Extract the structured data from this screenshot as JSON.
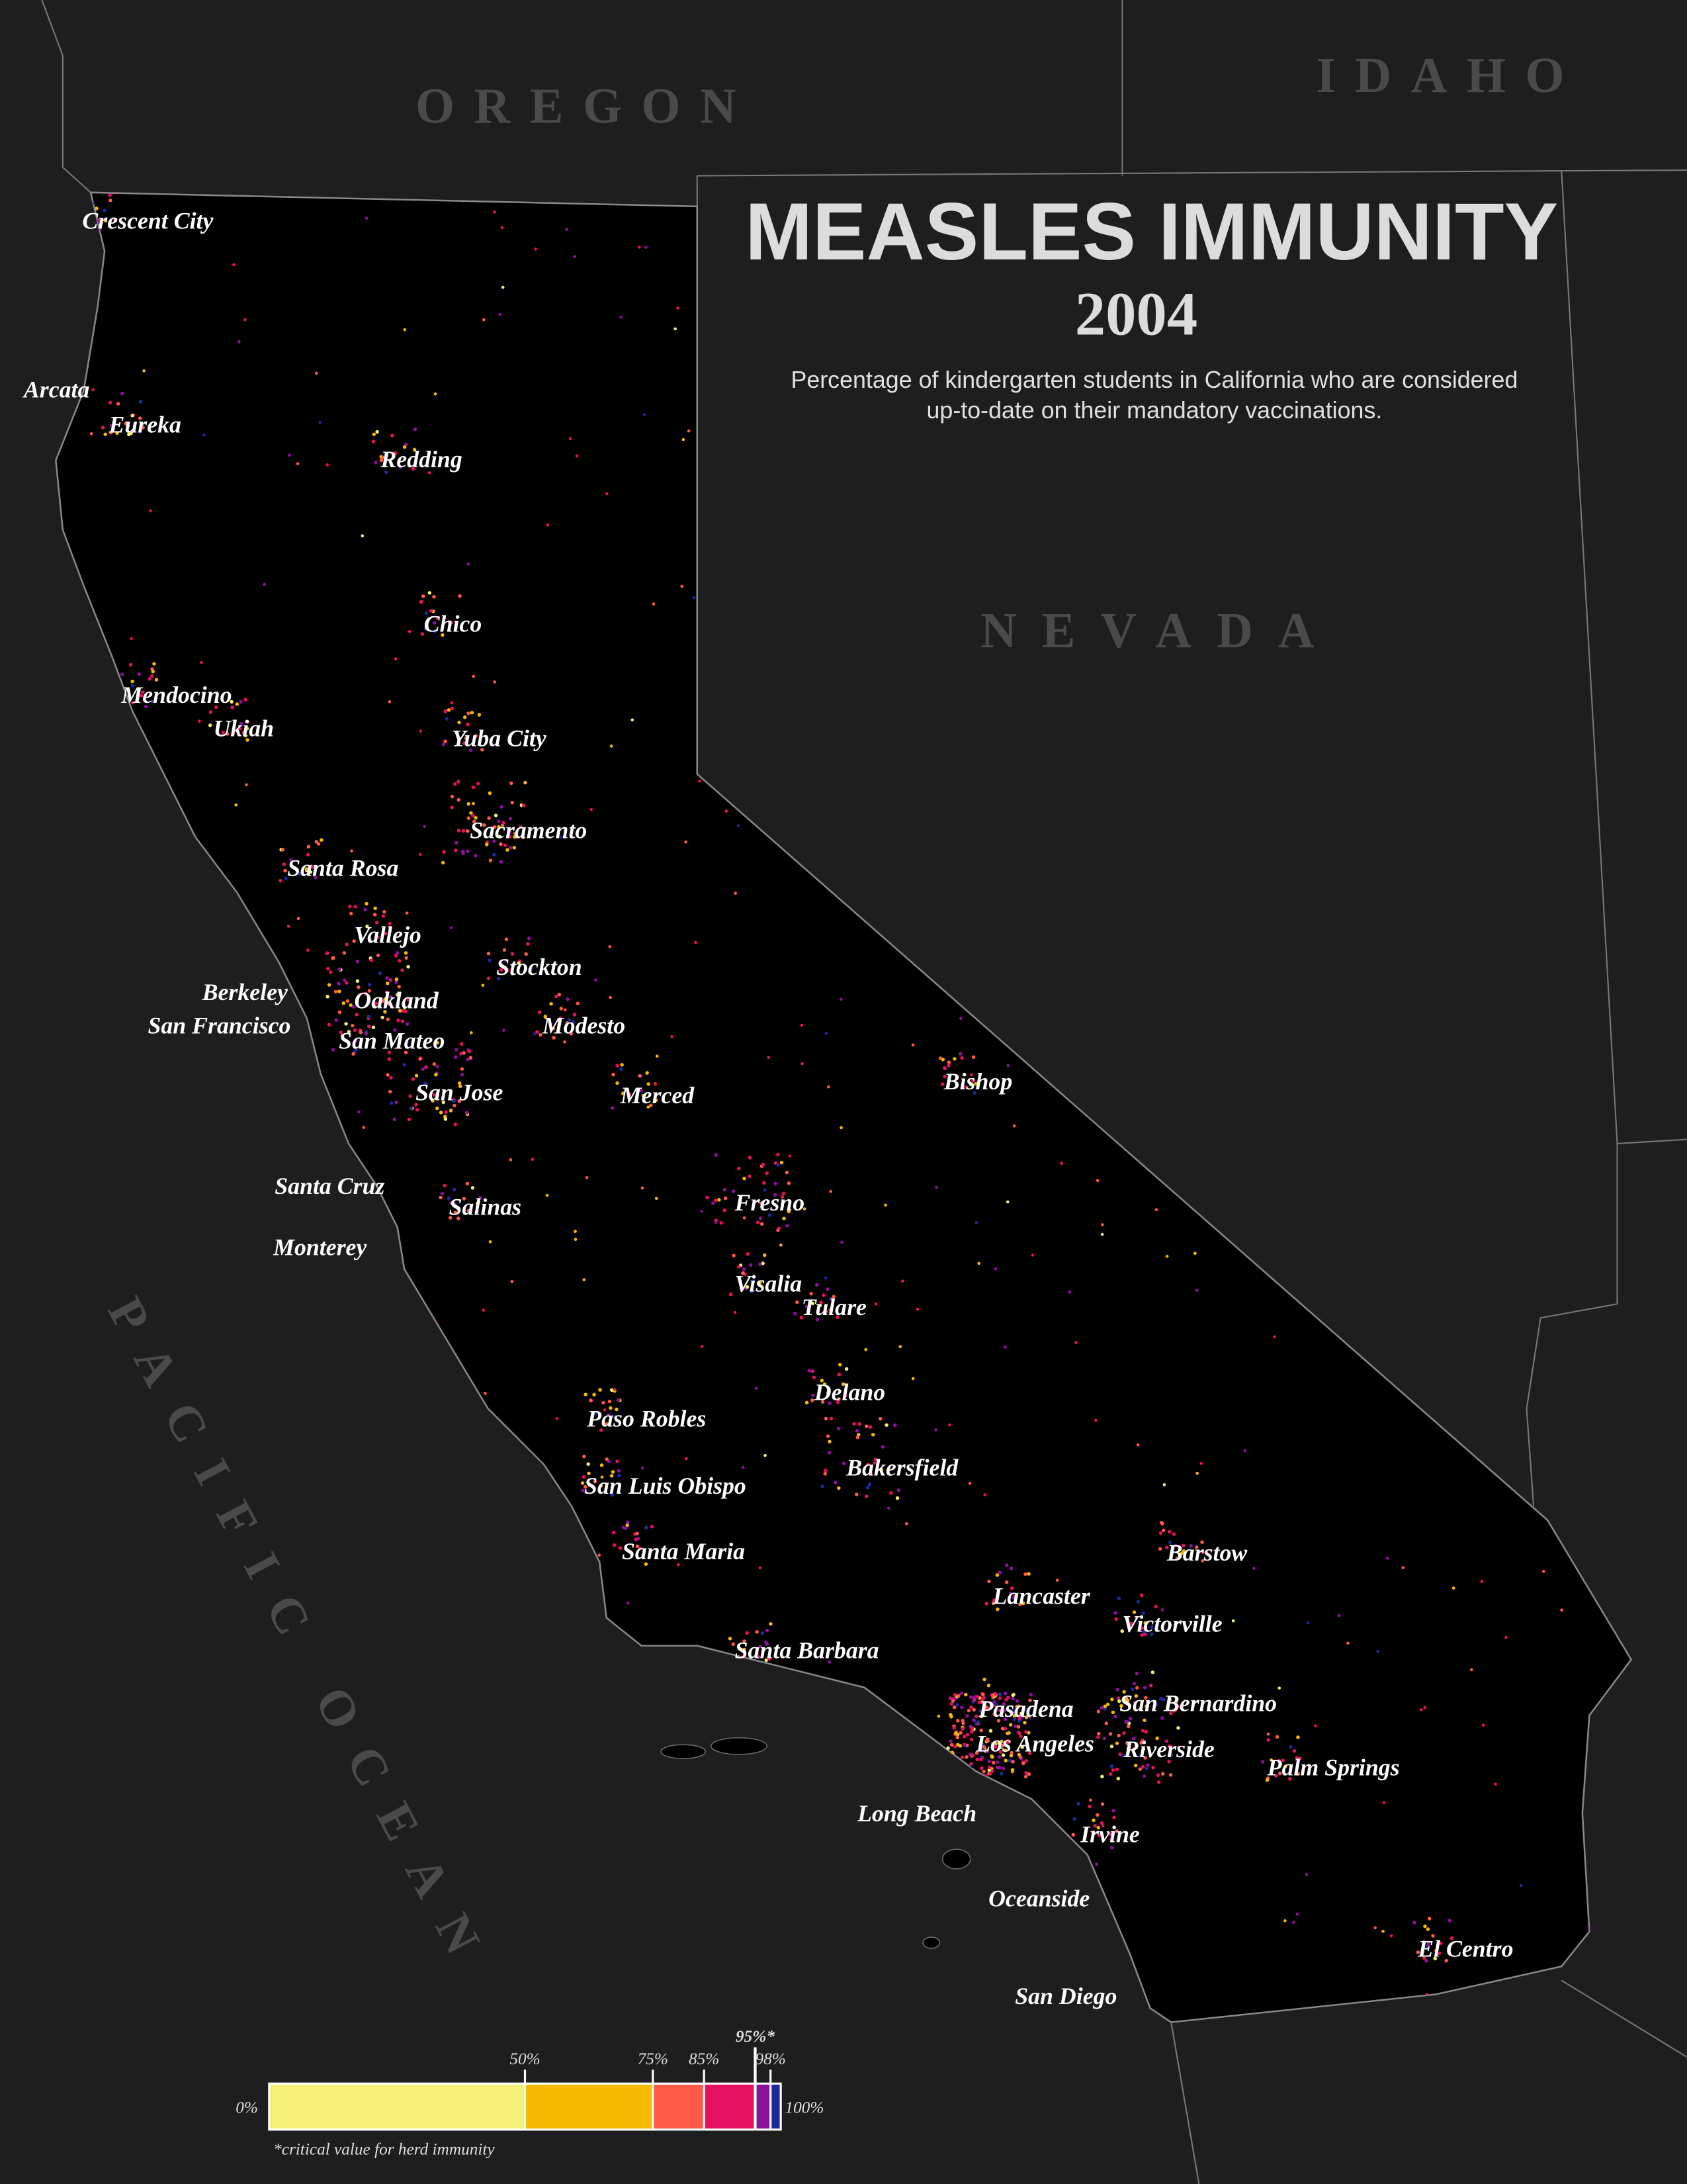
{
  "title": "MEASLES IMMUNITY",
  "year": "2004",
  "subtitle": [
    "Percentage of kindergarten students in California who are considered",
    "up-to-date on their mandatory vaccinations."
  ],
  "states": {
    "oregon": "OREGON",
    "idaho": "IDAHO",
    "nevada": "NEVADA",
    "ocean": "PACIFIC OCEAN"
  },
  "cities": [
    "Crescent City",
    "Arcata",
    "Eureka",
    "Redding",
    "Chico",
    "Mendocino",
    "Ukiah",
    "Yuba City",
    "Sacramento",
    "Santa Rosa",
    "Vallejo",
    "Stockton",
    "Berkeley",
    "Oakland",
    "San Francisco",
    "San Mateo",
    "Modesto",
    "San Jose",
    "Merced",
    "Bishop",
    "Santa Cruz",
    "Salinas",
    "Fresno",
    "Monterey",
    "Visalia",
    "Tulare",
    "Delano",
    "Paso Robles",
    "Bakersfield",
    "San Luis Obispo",
    "Santa Maria",
    "Barstow",
    "Lancaster",
    "Victorville",
    "Santa Barbara",
    "San Bernardino",
    "Pasadena",
    "Los Angeles",
    "Riverside",
    "Palm Springs",
    "Long Beach",
    "Irvine",
    "Oceanside",
    "El Centro",
    "San Diego"
  ],
  "legend": {
    "ticks": [
      {
        "value": 0,
        "label": "0%"
      },
      {
        "value": 50,
        "label": "50%"
      },
      {
        "value": 75,
        "label": "75%"
      },
      {
        "value": 85,
        "label": "85%"
      },
      {
        "value": 95,
        "label": "95%*"
      },
      {
        "value": 98,
        "label": "98%"
      },
      {
        "value": 100,
        "label": "100%"
      }
    ],
    "colors": [
      "#f5ef78",
      "#f5b900",
      "#ff5a48",
      "#e5105f",
      "#8a1199",
      "#1c2a9c"
    ],
    "footnote": "*critical value for herd immunity"
  }
}
